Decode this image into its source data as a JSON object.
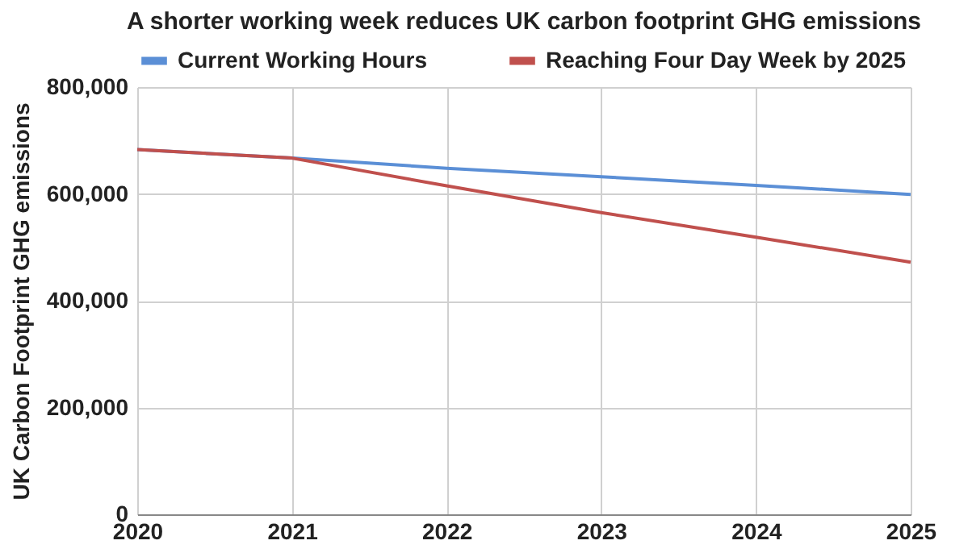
{
  "chart_data": {
    "type": "line",
    "title": "A shorter working week reduces UK carbon footprint GHG emissions",
    "ylabel": "UK Carbon Footprint GHG emissions",
    "x": [
      2020,
      2021,
      2022,
      2023,
      2024,
      2025
    ],
    "series": [
      {
        "name": "Current Working Hours",
        "color": "#5b8fd6",
        "values": [
          683000,
          667000,
          648000,
          632000,
          616000,
          599000
        ]
      },
      {
        "name": "Reaching Four Day Week by 2025",
        "color": "#c0504d",
        "values": [
          683000,
          667000,
          615000,
          565000,
          519000,
          472000
        ]
      }
    ],
    "xlim": [
      2020,
      2025
    ],
    "xticks": [
      2020,
      2021,
      2022,
      2023,
      2024,
      2025
    ],
    "ylim": [
      0,
      800000
    ],
    "yticks": [
      {
        "value": 0,
        "label": "0"
      },
      {
        "value": 200000,
        "label": "200,000"
      },
      {
        "value": 400000,
        "label": "400,000"
      },
      {
        "value": 600000,
        "label": "600,000"
      },
      {
        "value": 800000,
        "label": "800,000"
      }
    ],
    "grid": true,
    "legend": "top",
    "marker": "none",
    "line_style": "solid"
  }
}
